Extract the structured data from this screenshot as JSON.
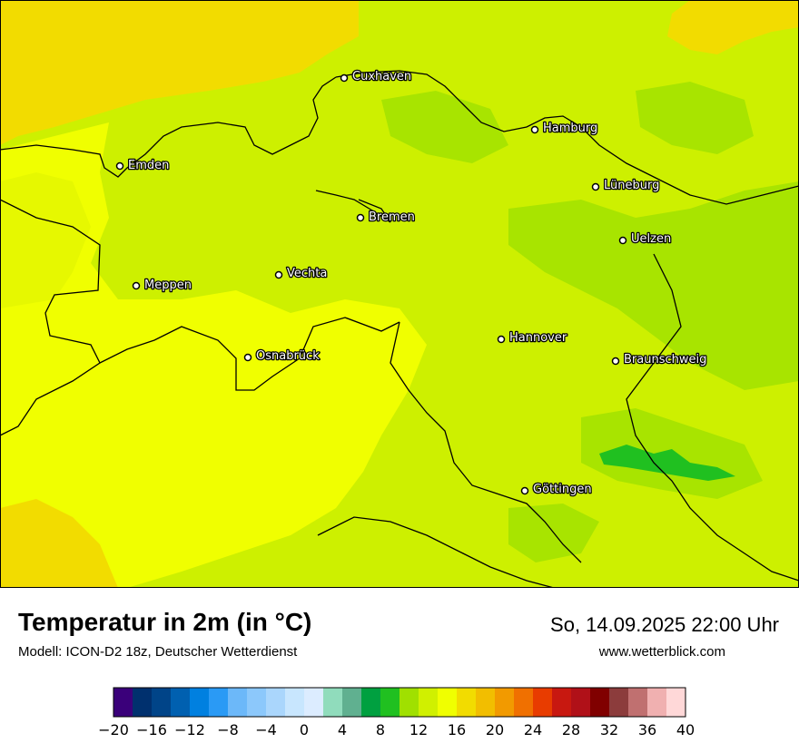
{
  "map": {
    "title": "Temperatur in 2m (in °C)",
    "subtitle": "Modell: ICON-D2 18z, Deutscher Wetterdienst",
    "datetime": "So, 14.09.2025 22:00 Uhr",
    "website": "www.wetterblick.com",
    "cities": [
      {
        "name": "Cuxhaven"
      },
      {
        "name": "Hamburg"
      },
      {
        "name": "Emden"
      },
      {
        "name": "Lüneburg"
      },
      {
        "name": "Bremen"
      },
      {
        "name": "Uelzen"
      },
      {
        "name": "Vechta"
      },
      {
        "name": "Meppen"
      },
      {
        "name": "Hannover"
      },
      {
        "name": "Osnabrück"
      },
      {
        "name": "Braunschweig"
      },
      {
        "name": "Göttingen"
      }
    ]
  },
  "legend": {
    "unit": "°C",
    "min": -20,
    "max": 40,
    "step": 2,
    "tick_labels": [
      "−20",
      "−16",
      "−12",
      "−8",
      "−4",
      "0",
      "4",
      "8",
      "12",
      "16",
      "20",
      "24",
      "28",
      "32",
      "36",
      "40"
    ],
    "colors": [
      "#3a007a",
      "#00306e",
      "#004488",
      "#0060b0",
      "#0080e0",
      "#2a9af5",
      "#6cb8f9",
      "#8cc8fb",
      "#aad6fc",
      "#c8e6fe",
      "#dcecff",
      "#90dcbc",
      "#60b090",
      "#00a040",
      "#20c020",
      "#a0e000",
      "#d0f000",
      "#f0ff00",
      "#f2dc00",
      "#f2be00",
      "#f29a00",
      "#f07000",
      "#e83c00",
      "#c81810",
      "#b01018",
      "#800000",
      "#8c3c3c",
      "#c07070",
      "#f0b0b0",
      "#ffd8d8"
    ]
  }
}
